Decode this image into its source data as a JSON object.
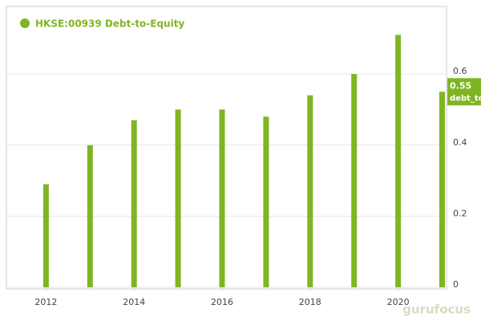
{
  "chart_data": {
    "type": "bar",
    "legend": "HKSE:00939 Debt-to-Equity",
    "x": [
      2012,
      2013,
      2014,
      2015,
      2016,
      2017,
      2018,
      2019,
      2020,
      2021
    ],
    "series": [
      {
        "name": "HKSE:00939 Debt-to-Equity",
        "color": "#80b522",
        "values": [
          0.29,
          0.4,
          0.47,
          0.5,
          0.5,
          0.48,
          0.54,
          0.6,
          0.71,
          0.55
        ]
      }
    ],
    "xlim": [
      2011.1,
      2021.1
    ],
    "xticks": [
      2012,
      2014,
      2016,
      2018,
      2020
    ],
    "ylim": [
      0,
      0.79
    ],
    "yticks": [
      0,
      0.2,
      0.4,
      0.6
    ],
    "grid": true,
    "tag_label": "debt_to",
    "watermark": "gurufocus"
  }
}
